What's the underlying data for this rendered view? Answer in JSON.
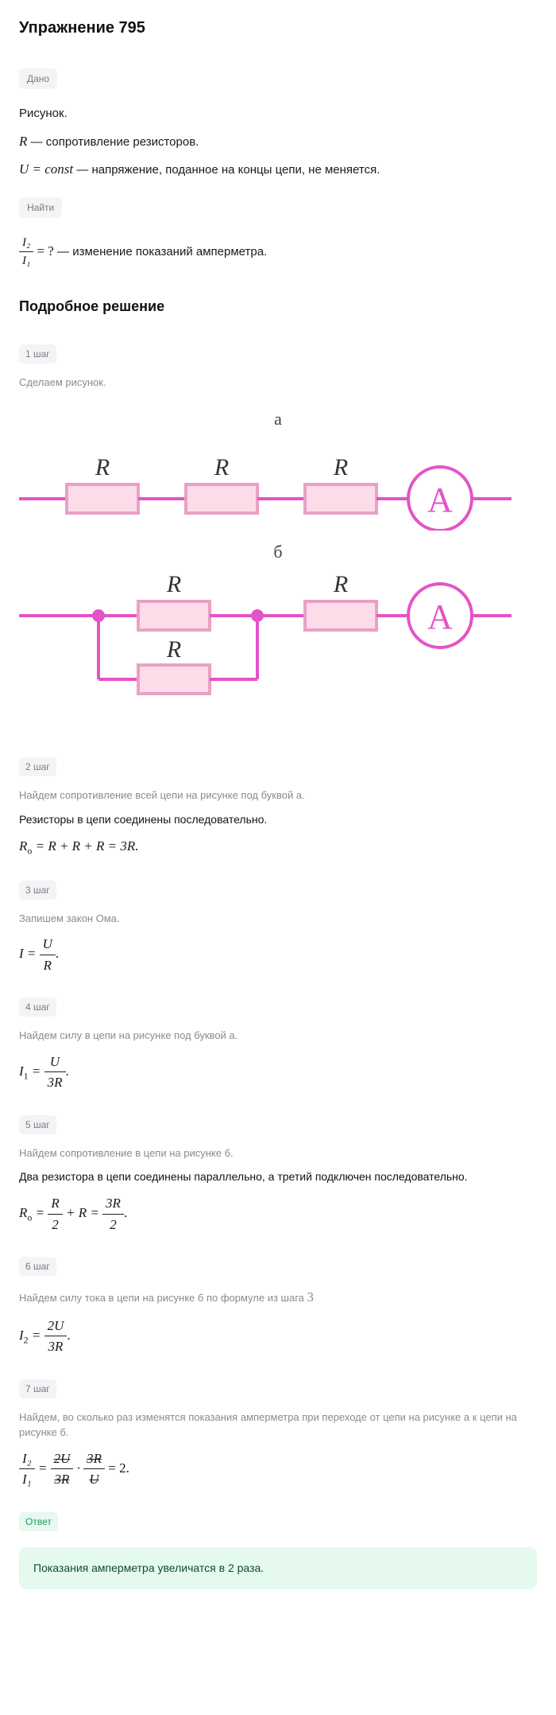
{
  "title": "Упражнение 795",
  "given_badge": "Дано",
  "given": {
    "l1_pre": "Рисунок.",
    "l2_var": "R",
    "l2_txt": " — сопротивление резисторов.",
    "l3_var": "U = const",
    "l3_txt": " — напряжение, поданное на концы цепи, не меняется."
  },
  "find_badge": "Найти",
  "find": {
    "frac_num": "I₂",
    "frac_den": "I₁",
    "eq": " = ? ",
    "txt": "— изменение показаний амперметра."
  },
  "solution_title": "Подробное решение",
  "steps": [
    {
      "badge": "1 шаг",
      "desc": "Сделаем рисунок."
    },
    {
      "badge": "2 шаг",
      "desc": "Найдем сопротивление всей цепи на рисунке под буквой а.",
      "bold": "Резисторы в цепи соединены последовательно.",
      "formula_html": "R<sub class='sub'>о</sub> = R + R + R = 3R."
    },
    {
      "badge": "3 шаг",
      "desc": "Запишем закон Ома.",
      "frac": {
        "lhs": "I = ",
        "num": "U",
        "den": "R",
        "tail": "."
      }
    },
    {
      "badge": "4 шаг",
      "desc": "Найдем силу в цепи на рисунке под буквой а.",
      "frac": {
        "lhs": "I<sub class='sub'>1</sub> = ",
        "num": "U",
        "den": "3R",
        "tail": "."
      }
    },
    {
      "badge": "5 шаг",
      "desc": "Найдем сопротивление в цепи на рисунке б.",
      "bold": "Два резистора в цепи соединены параллельно, а третий подключен последовательно.",
      "frac2": {
        "lhs": "R<sub class='sub'>о</sub> = ",
        "n1": "R",
        "d1": "2",
        "mid": " + R = ",
        "n2": "3R",
        "d2": "2",
        "tail": "."
      }
    },
    {
      "badge": "6 шаг",
      "desc_html": "Найдем силу тока в цепи на рисунке б по формуле из шага <span class='math rm'>3</span>",
      "frac": {
        "lhs": "I<sub class='sub'>2</sub> = ",
        "num": "2U",
        "den": "3R",
        "tail": "."
      }
    },
    {
      "badge": "7 шаг",
      "desc": "Найдем, во сколько раз изменятся показания амперметра при переходе от цепи на рисунке а к цепи на рисунке б.",
      "frac3": {
        "lnum": "I₂",
        "lden": "I₁",
        "eq": " = ",
        "n1": "2U",
        "d1": "3R",
        "dot": " · ",
        "n2": "3R",
        "d2": "U",
        "tail": " = 2."
      }
    }
  ],
  "answer_badge": "Ответ",
  "answer_text": "Показания амперметра увеличатся в 2 раза.",
  "diagram": {
    "label_a": "а",
    "label_b": "б",
    "label_R": "R",
    "label_A": "A",
    "colors": {
      "line": "#e354c6",
      "box_fill": "#fcdce9",
      "box_stroke": "#e9a0c6",
      "ammeter": "#e354c6",
      "node": "#e354c6"
    }
  }
}
